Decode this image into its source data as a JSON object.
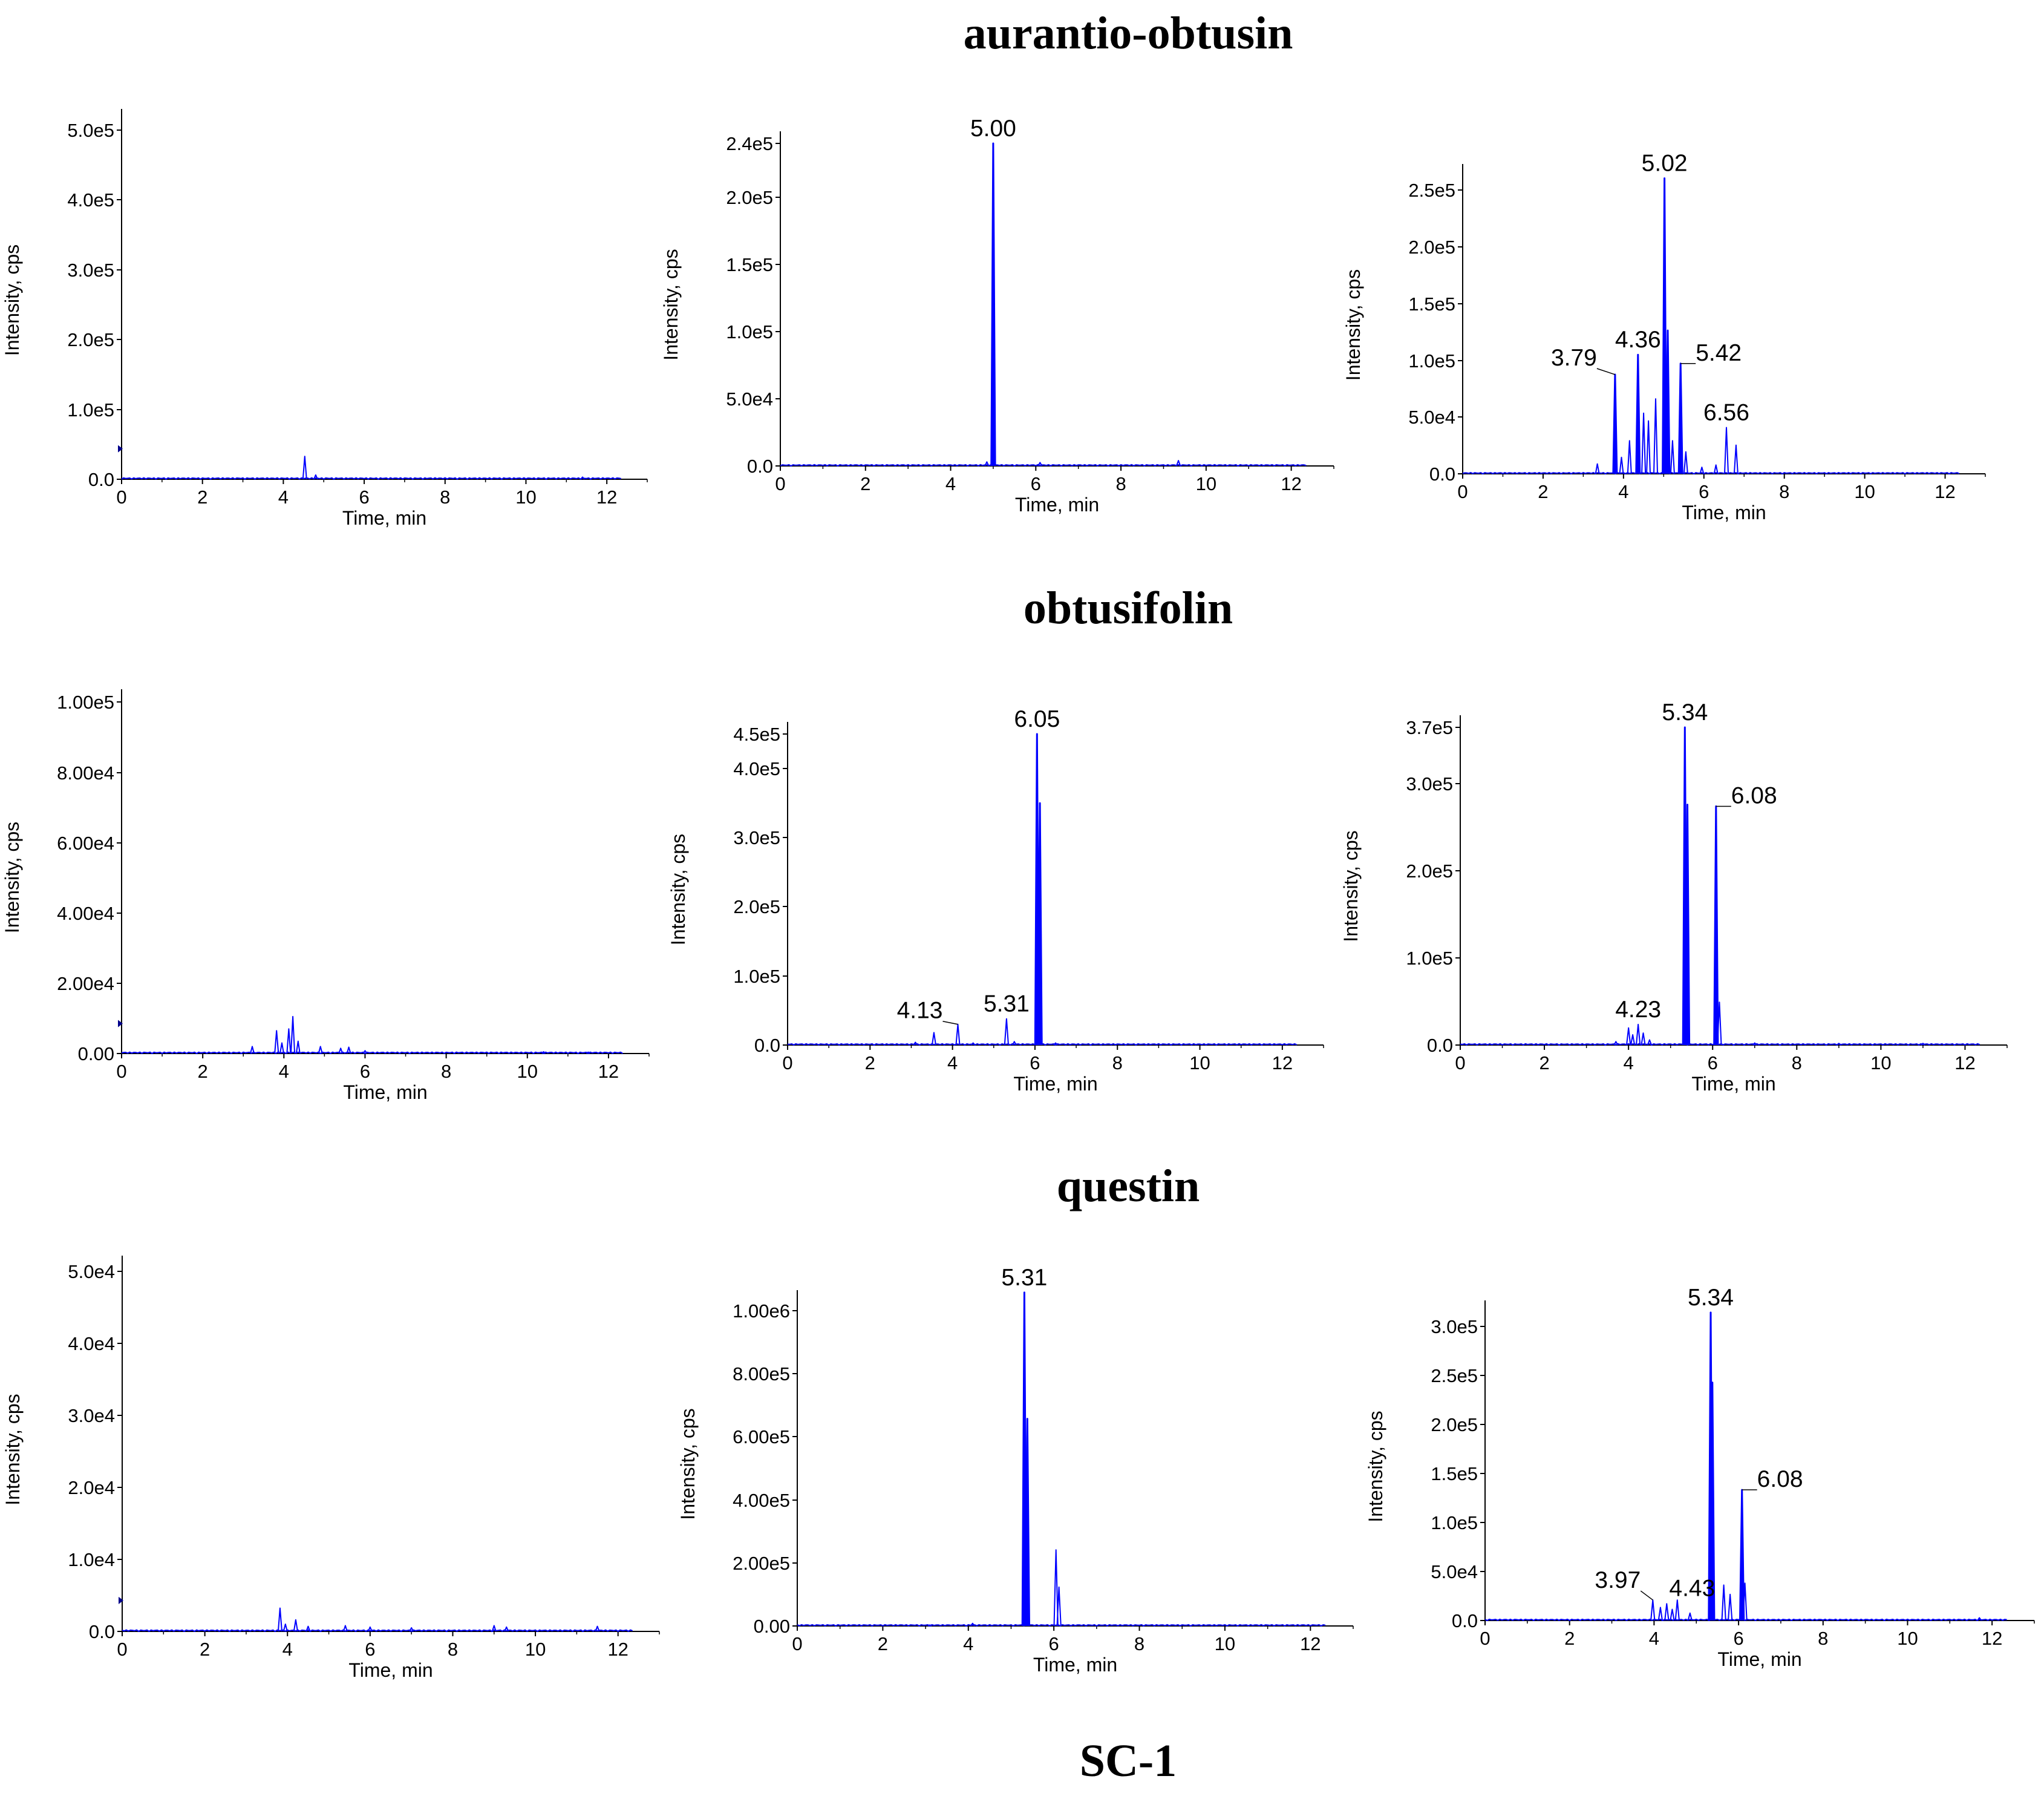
{
  "section_titles": [
    "aurantio-obtusin",
    "obtusifolin",
    "questin",
    "SC-1"
  ],
  "x_axis_label": "Time, min",
  "y_axis_label": "Intensity, cps",
  "x_ticks": [
    "0",
    "2",
    "4",
    "6",
    "8",
    "10",
    "12"
  ],
  "trace_color": "#0000ff",
  "chart_data": [
    {
      "type": "line",
      "row_title": "aurantio-obtusin",
      "xlabel": "Time, min",
      "ylabel": "Intensity, cps",
      "xlim": [
        0,
        13
      ],
      "ylim": [
        0,
        500000
      ],
      "ytick_labels": [
        "0.0",
        "1.0e5",
        "2.0e5",
        "3.0e5",
        "4.0e5",
        "5.0e5"
      ],
      "peaks": [
        {
          "x": 4.53,
          "y": 32000
        },
        {
          "x": 4.8,
          "y": 6000
        },
        {
          "x": 11.4,
          "y": 3000
        }
      ],
      "annotations": []
    },
    {
      "type": "line",
      "row_title": "aurantio-obtusin",
      "xlabel": "Time, min",
      "ylabel": "Intensity, cps",
      "xlim": [
        0,
        13
      ],
      "ylim": [
        0,
        240000
      ],
      "ytick_labels": [
        "0.0",
        "5.0e4",
        "1.0e5",
        "1.5e5",
        "2.0e5",
        "2.4e5"
      ],
      "peaks": [
        {
          "x": 5.0,
          "y": 240000
        },
        {
          "x": 4.85,
          "y": 3000
        },
        {
          "x": 6.1,
          "y": 2500
        },
        {
          "x": 9.35,
          "y": 4000
        }
      ],
      "annotations": [
        {
          "text": "5.00",
          "x": 5.0,
          "y": 240000
        }
      ]
    },
    {
      "type": "line",
      "row_title": "aurantio-obtusin",
      "xlabel": "Time, min",
      "ylabel": "Intensity, cps",
      "xlim": [
        0,
        13
      ],
      "ylim": [
        0,
        270000
      ],
      "ytick_labels": [
        "0.0",
        "5.0e4",
        "1.0e5",
        "1.5e5",
        "2.0e5",
        "2.5e5"
      ],
      "peaks": [
        {
          "x": 3.35,
          "y": 9000
        },
        {
          "x": 3.79,
          "y": 90000
        },
        {
          "x": 3.95,
          "y": 15000
        },
        {
          "x": 4.15,
          "y": 30000
        },
        {
          "x": 4.36,
          "y": 108000
        },
        {
          "x": 4.5,
          "y": 55000
        },
        {
          "x": 4.62,
          "y": 48000
        },
        {
          "x": 4.8,
          "y": 68000
        },
        {
          "x": 5.02,
          "y": 268000
        },
        {
          "x": 5.1,
          "y": 130000
        },
        {
          "x": 5.22,
          "y": 30000
        },
        {
          "x": 5.42,
          "y": 100000
        },
        {
          "x": 5.55,
          "y": 20000
        },
        {
          "x": 5.95,
          "y": 6000
        },
        {
          "x": 6.3,
          "y": 8000
        },
        {
          "x": 6.56,
          "y": 42000
        },
        {
          "x": 6.8,
          "y": 26000
        }
      ],
      "annotations": [
        {
          "text": "5.02",
          "x": 5.02,
          "y": 268000
        },
        {
          "text": "3.79",
          "x": 3.79,
          "y": 90000
        },
        {
          "text": "4.36",
          "x": 4.36,
          "y": 108000
        },
        {
          "text": "5.42",
          "x": 5.42,
          "y": 100000
        },
        {
          "text": "6.56",
          "x": 6.56,
          "y": 42000
        }
      ]
    },
    {
      "type": "line",
      "row_title": "obtusifolin",
      "xlabel": "Time, min",
      "ylabel": "Intensity, cps",
      "xlim": [
        0,
        13
      ],
      "ylim": [
        0,
        100000
      ],
      "ytick_labels": [
        "0.00",
        "2.00e4",
        "4.00e4",
        "6.00e4",
        "8.00e4",
        "1.00e5"
      ],
      "peaks": [
        {
          "x": 3.22,
          "y": 2000
        },
        {
          "x": 3.82,
          "y": 6500
        },
        {
          "x": 3.95,
          "y": 3000
        },
        {
          "x": 4.12,
          "y": 7000
        },
        {
          "x": 4.22,
          "y": 10500
        },
        {
          "x": 4.35,
          "y": 3500
        },
        {
          "x": 4.9,
          "y": 2000
        },
        {
          "x": 5.4,
          "y": 1500
        },
        {
          "x": 5.6,
          "y": 1800
        },
        {
          "x": 6.0,
          "y": 800
        },
        {
          "x": 10.4,
          "y": 500
        },
        {
          "x": 11.5,
          "y": 400
        }
      ],
      "annotations": []
    },
    {
      "type": "line",
      "row_title": "obtusifolin",
      "xlabel": "Time, min",
      "ylabel": "Intensity, cps",
      "xlim": [
        0,
        13
      ],
      "ylim": [
        0,
        450000
      ],
      "ytick_labels": [
        "0.0",
        "1.0e5",
        "2.0e5",
        "3.0e5",
        "4.0e5",
        "4.5e5"
      ],
      "peaks": [
        {
          "x": 3.1,
          "y": 4000
        },
        {
          "x": 3.55,
          "y": 18000
        },
        {
          "x": 4.13,
          "y": 30000
        },
        {
          "x": 4.5,
          "y": 3000
        },
        {
          "x": 5.31,
          "y": 38000
        },
        {
          "x": 5.5,
          "y": 5000
        },
        {
          "x": 6.05,
          "y": 450000
        },
        {
          "x": 6.12,
          "y": 350000
        },
        {
          "x": 6.5,
          "y": 3000
        }
      ],
      "annotations": [
        {
          "text": "6.05",
          "x": 6.05,
          "y": 450000
        },
        {
          "text": "4.13",
          "x": 4.13,
          "y": 30000
        },
        {
          "text": "5.31",
          "x": 5.31,
          "y": 38000
        }
      ]
    },
    {
      "type": "line",
      "row_title": "obtusifolin",
      "xlabel": "Time, min",
      "ylabel": "Intensity, cps",
      "xlim": [
        0,
        13
      ],
      "ylim": [
        0,
        370000
      ],
      "ytick_labels": [
        "0.0",
        "1.0e5",
        "2.0e5",
        "3.0e5",
        "3.7e5"
      ],
      "peaks": [
        {
          "x": 3.7,
          "y": 4000
        },
        {
          "x": 4.0,
          "y": 20000
        },
        {
          "x": 4.1,
          "y": 12000
        },
        {
          "x": 4.23,
          "y": 24000
        },
        {
          "x": 4.35,
          "y": 14000
        },
        {
          "x": 4.5,
          "y": 6000
        },
        {
          "x": 5.34,
          "y": 370000
        },
        {
          "x": 5.4,
          "y": 280000
        },
        {
          "x": 6.08,
          "y": 278000
        },
        {
          "x": 6.16,
          "y": 50000
        },
        {
          "x": 7.0,
          "y": 2500
        },
        {
          "x": 9.0,
          "y": 2000
        },
        {
          "x": 11.0,
          "y": 2000
        }
      ],
      "annotations": [
        {
          "text": "5.34",
          "x": 5.34,
          "y": 370000
        },
        {
          "text": "6.08",
          "x": 6.08,
          "y": 278000
        },
        {
          "text": "4.23",
          "x": 4.23,
          "y": 24000
        }
      ]
    },
    {
      "type": "line",
      "row_title": "questin",
      "xlabel": "Time, min",
      "ylabel": "Intensity, cps",
      "xlim": [
        0,
        13
      ],
      "ylim": [
        0,
        50000
      ],
      "ytick_labels": [
        "0.0",
        "1.0e4",
        "2.0e4",
        "3.0e4",
        "4.0e4",
        "5.0e4"
      ],
      "peaks": [
        {
          "x": 3.82,
          "y": 3200
        },
        {
          "x": 3.95,
          "y": 1000
        },
        {
          "x": 4.2,
          "y": 1600
        },
        {
          "x": 4.5,
          "y": 700
        },
        {
          "x": 5.4,
          "y": 800
        },
        {
          "x": 6.0,
          "y": 600
        },
        {
          "x": 7.0,
          "y": 500
        },
        {
          "x": 9.0,
          "y": 800
        },
        {
          "x": 9.3,
          "y": 600
        },
        {
          "x": 11.5,
          "y": 700
        }
      ],
      "annotations": []
    },
    {
      "type": "line",
      "row_title": "questin",
      "xlabel": "Time, min",
      "ylabel": "Intensity, cps",
      "xlim": [
        0,
        13
      ],
      "ylim": [
        0,
        1000000
      ],
      "ytick_labels": [
        "0.00",
        "2.00e5",
        "4.00e5",
        "6.00e5",
        "8.00e5",
        "1.00e6"
      ],
      "peaks": [
        {
          "x": 3.1,
          "y": 3000
        },
        {
          "x": 4.1,
          "y": 8000
        },
        {
          "x": 5.31,
          "y": 1030000
        },
        {
          "x": 5.38,
          "y": 640000
        },
        {
          "x": 6.05,
          "y": 235000
        },
        {
          "x": 6.12,
          "y": 120000
        }
      ],
      "annotations": [
        {
          "text": "5.31",
          "x": 5.31,
          "y": 1030000
        }
      ]
    },
    {
      "type": "line",
      "row_title": "questin",
      "xlabel": "Time, min",
      "ylabel": "Intensity, cps",
      "xlim": [
        0,
        13
      ],
      "ylim": [
        0,
        330000
      ],
      "ytick_labels": [
        "0.0",
        "5.0e4",
        "1.0e5",
        "1.5e5",
        "2.0e5",
        "2.5e5",
        "3.0e5"
      ],
      "peaks": [
        {
          "x": 3.97,
          "y": 22000
        },
        {
          "x": 4.15,
          "y": 14000
        },
        {
          "x": 4.3,
          "y": 18000
        },
        {
          "x": 4.43,
          "y": 12000
        },
        {
          "x": 4.55,
          "y": 22000
        },
        {
          "x": 4.85,
          "y": 8000
        },
        {
          "x": 5.34,
          "y": 330000
        },
        {
          "x": 5.38,
          "y": 255000
        },
        {
          "x": 5.65,
          "y": 38000
        },
        {
          "x": 5.8,
          "y": 28000
        },
        {
          "x": 6.08,
          "y": 140000
        },
        {
          "x": 6.15,
          "y": 40000
        },
        {
          "x": 11.7,
          "y": 3000
        }
      ],
      "annotations": [
        {
          "text": "5.34",
          "x": 5.34,
          "y": 330000
        },
        {
          "text": "6.08",
          "x": 6.08,
          "y": 140000
        },
        {
          "text": "3.97",
          "x": 3.97,
          "y": 22000
        },
        {
          "text": "4.43",
          "x": 4.43,
          "y": 12000
        }
      ]
    }
  ]
}
